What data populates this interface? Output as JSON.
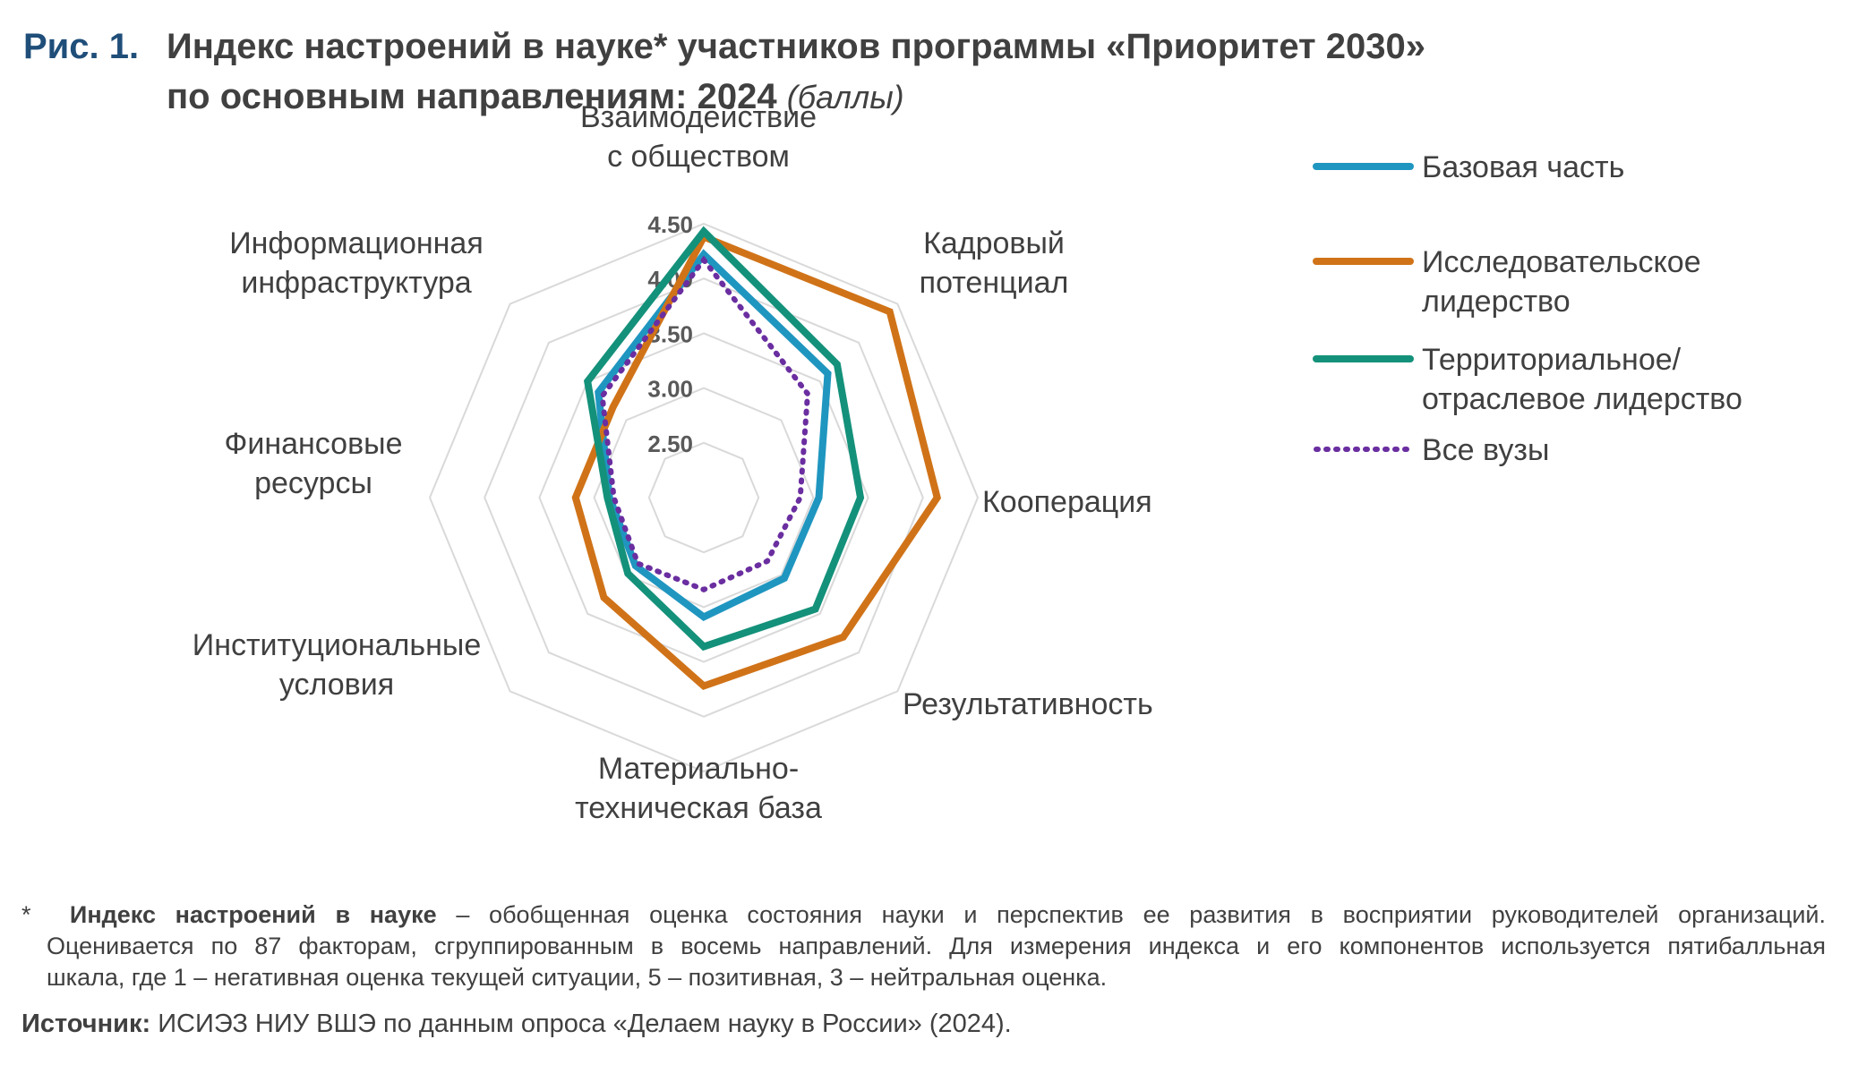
{
  "figure": {
    "number": "Рис. 1.",
    "title_line1": "Индекс настроений в науке* участников программы «Приоритет 2030»",
    "title_line2": "по основным направлениям: 2024",
    "units": "(баллы)"
  },
  "chart_data": {
    "type": "radar",
    "axes": [
      [
        "Взаимодействие",
        "с обществом"
      ],
      [
        "Кадровый",
        "потенциал"
      ],
      [
        "Кооперация"
      ],
      [
        "Результативность"
      ],
      [
        "Материально-",
        "техническая база"
      ],
      [
        "Институциональные",
        "условия"
      ],
      [
        "Финансовые",
        "ресурсы"
      ],
      [
        "Информационная",
        "инфраструктура"
      ]
    ],
    "rlim": [
      2.0,
      4.5
    ],
    "ticks": [
      2.5,
      3.0,
      3.5,
      4.0,
      4.5
    ],
    "tick_labels": [
      "2.50",
      "3.00",
      "3.50",
      "4.00",
      "4.50"
    ],
    "grid": true,
    "legend_position": "right",
    "series": [
      {
        "name": "Базовая часть",
        "name_lines": [
          "Базовая часть"
        ],
        "color": "#1f96c0",
        "style": "solid",
        "values": [
          4.22,
          3.6,
          3.05,
          3.04,
          3.09,
          2.88,
          2.86,
          3.36
        ]
      },
      {
        "name": "Исследовательское лидерство",
        "name_lines": [
          "Исследовательское",
          "лидерство"
        ],
        "color": "#d07318",
        "style": "solid",
        "values": [
          4.38,
          4.4,
          4.13,
          3.8,
          3.72,
          3.29,
          3.17,
          3.17
        ]
      },
      {
        "name": "Территориальное/ отраслевое лидерство",
        "name_lines": [
          "Территориальное/",
          "отраслевое лидерство"
        ],
        "color": "#14917a",
        "style": "solid",
        "values": [
          4.43,
          3.72,
          3.43,
          3.44,
          3.36,
          2.98,
          2.88,
          3.5
        ]
      },
      {
        "name": "Все вузы",
        "name_lines": [
          "Все вузы"
        ],
        "color": "#6a2ea0",
        "style": "dotted",
        "values": [
          4.17,
          3.34,
          2.88,
          2.82,
          2.84,
          2.85,
          2.82,
          3.31
        ]
      }
    ]
  },
  "footnote": {
    "marker": "*",
    "term": "Индекс настроений в науке",
    "line1": " – обобщенная оценка состояния науки и перспектив ее развития в восприятии руководителей организаций.",
    "line2": "Оценивается по 87 факторам, сгруппированным в восемь направлений. Для измерения индекса и его компонентов используется пятибалльная",
    "line3": "шкала, где 1 – негативная оценка текущей ситуации, 5 – позитивная, 3 – нейтральная оценка."
  },
  "source": {
    "label": "Источник:",
    "text": " ИСИЭЗ НИУ ВШЭ по данным опроса «Делаем науку в России» (2024)."
  }
}
